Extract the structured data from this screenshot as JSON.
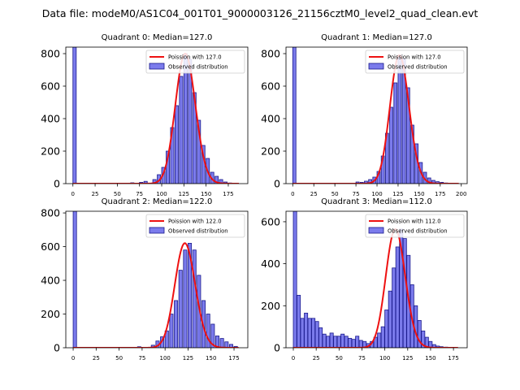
{
  "suptitle": "Data file: modeM0/AS1C04_001T01_9000003126_21156cztM0_level2_quad_clean.evt",
  "colors": {
    "bar_fill": "#7b7bec",
    "bar_edge": "#1a1a8c",
    "fit_line": "#ee1111"
  },
  "chart_data": [
    {
      "type": "bar+line",
      "title": "Quadrant 0: Median=127.0",
      "legend": {
        "placement": "top-right",
        "line_label": "Poission with 127.0",
        "bar_label": "Observed distribution"
      },
      "xlim": [
        -8,
        197
      ],
      "ylim": [
        0,
        840
      ],
      "xticks": [
        0,
        25,
        50,
        75,
        100,
        125,
        150,
        175
      ],
      "yticks": [
        0,
        200,
        400,
        600,
        800
      ],
      "bin_width": 3.75,
      "bins": [
        [
          0,
          840
        ],
        [
          65,
          5
        ],
        [
          75,
          8
        ],
        [
          80,
          14
        ],
        [
          90,
          25
        ],
        [
          95,
          55
        ],
        [
          100,
          100
        ],
        [
          105,
          200
        ],
        [
          110,
          345
        ],
        [
          115,
          480
        ],
        [
          120,
          660
        ],
        [
          125,
          800
        ],
        [
          130,
          765
        ],
        [
          135,
          560
        ],
        [
          140,
          390
        ],
        [
          145,
          235
        ],
        [
          150,
          155
        ],
        [
          155,
          70
        ],
        [
          160,
          45
        ],
        [
          165,
          25
        ],
        [
          170,
          10
        ],
        [
          175,
          4
        ]
      ],
      "poisson_mu": 127
    },
    {
      "type": "bar+line",
      "title": "Quadrant 1: Median=127.0",
      "legend": {
        "placement": "top-right",
        "line_label": "Poission with 127.0",
        "bar_label": "Observed distribution"
      },
      "xlim": [
        -8,
        207
      ],
      "ylim": [
        0,
        840
      ],
      "xticks": [
        0,
        25,
        50,
        75,
        100,
        125,
        150,
        175,
        200
      ],
      "yticks": [
        0,
        200,
        400,
        600,
        800
      ],
      "bin_width": 3.8,
      "bins": [
        [
          0,
          840
        ],
        [
          75,
          10
        ],
        [
          80,
          8
        ],
        [
          85,
          15
        ],
        [
          90,
          25
        ],
        [
          95,
          40
        ],
        [
          100,
          75
        ],
        [
          105,
          170
        ],
        [
          110,
          310
        ],
        [
          115,
          470
        ],
        [
          120,
          620
        ],
        [
          125,
          790
        ],
        [
          130,
          770
        ],
        [
          135,
          590
        ],
        [
          140,
          360
        ],
        [
          145,
          245
        ],
        [
          150,
          130
        ],
        [
          155,
          70
        ],
        [
          160,
          35
        ],
        [
          165,
          20
        ],
        [
          170,
          12
        ],
        [
          175,
          8
        ],
        [
          180,
          4
        ]
      ],
      "poisson_mu": 127
    },
    {
      "type": "bar+line",
      "title": "Quadrant 2: Median=122.0",
      "legend": {
        "placement": "top-right",
        "line_label": "Poission with 122.0",
        "bar_label": "Observed distribution"
      },
      "xlim": [
        -8,
        190
      ],
      "ylim": [
        0,
        810
      ],
      "xticks": [
        0,
        25,
        50,
        75,
        100,
        125,
        150,
        175
      ],
      "yticks": [
        0,
        200,
        400,
        600,
        800
      ],
      "bin_width": 3.7,
      "bins": [
        [
          0,
          810
        ],
        [
          70,
          6
        ],
        [
          85,
          15
        ],
        [
          90,
          40
        ],
        [
          95,
          65
        ],
        [
          100,
          100
        ],
        [
          105,
          200
        ],
        [
          110,
          280
        ],
        [
          115,
          460
        ],
        [
          120,
          580
        ],
        [
          125,
          620
        ],
        [
          130,
          580
        ],
        [
          135,
          430
        ],
        [
          140,
          280
        ],
        [
          145,
          200
        ],
        [
          150,
          140
        ],
        [
          155,
          70
        ],
        [
          160,
          55
        ],
        [
          165,
          35
        ],
        [
          170,
          20
        ],
        [
          175,
          8
        ]
      ],
      "poisson_mu": 122
    },
    {
      "type": "bar+line",
      "title": "Quadrant 3: Median=112.0",
      "legend": {
        "placement": "top-right",
        "line_label": "Poission with 112.0",
        "bar_label": "Observed distribution"
      },
      "xlim": [
        -8,
        190
      ],
      "ylim": [
        0,
        650
      ],
      "xticks": [
        0,
        25,
        50,
        75,
        100,
        125,
        150,
        175
      ],
      "yticks": [
        0,
        200,
        400,
        600
      ],
      "bin_width": 3.7,
      "bins": [
        [
          0,
          650
        ],
        [
          4,
          250
        ],
        [
          8,
          140
        ],
        [
          12,
          165
        ],
        [
          16,
          140
        ],
        [
          20,
          140
        ],
        [
          24,
          125
        ],
        [
          28,
          95
        ],
        [
          32,
          65
        ],
        [
          36,
          55
        ],
        [
          40,
          70
        ],
        [
          44,
          55
        ],
        [
          48,
          55
        ],
        [
          52,
          65
        ],
        [
          56,
          55
        ],
        [
          60,
          45
        ],
        [
          64,
          40
        ],
        [
          68,
          55
        ],
        [
          72,
          35
        ],
        [
          76,
          30
        ],
        [
          80,
          20
        ],
        [
          84,
          30
        ],
        [
          88,
          50
        ],
        [
          92,
          70
        ],
        [
          96,
          100
        ],
        [
          100,
          180
        ],
        [
          104,
          270
        ],
        [
          108,
          380
        ],
        [
          112,
          480
        ],
        [
          116,
          565
        ],
        [
          120,
          520
        ],
        [
          124,
          440
        ],
        [
          128,
          300
        ],
        [
          132,
          200
        ],
        [
          136,
          130
        ],
        [
          140,
          80
        ],
        [
          144,
          50
        ],
        [
          148,
          30
        ],
        [
          152,
          15
        ],
        [
          156,
          8
        ],
        [
          160,
          5
        ],
        [
          165,
          3
        ],
        [
          170,
          2
        ]
      ],
      "poisson_mu": 112
    }
  ]
}
